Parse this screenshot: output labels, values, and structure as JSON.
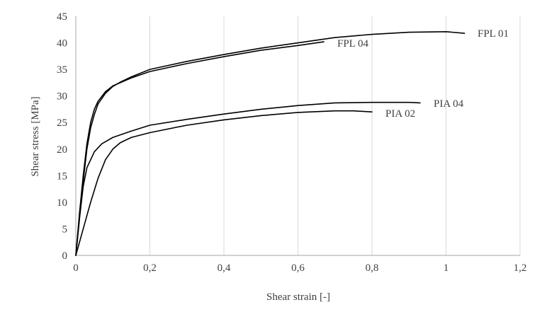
{
  "chart_data": {
    "type": "line",
    "title": "",
    "xlabel": "Shear strain [-]",
    "ylabel": "Shear stress [MPa]",
    "xlim": [
      0,
      1.2
    ],
    "ylim": [
      0,
      45
    ],
    "x_ticks": [
      "0",
      "0,2",
      "0,4",
      "0,6",
      "0,8",
      "1",
      "1,2"
    ],
    "y_ticks": [
      "0",
      "5",
      "10",
      "15",
      "20",
      "25",
      "30",
      "35",
      "40",
      "45"
    ],
    "grid": "vertical",
    "line_color": "#000000",
    "series": [
      {
        "name": "FPL 01",
        "x": [
          0,
          0.01,
          0.02,
          0.03,
          0.04,
          0.05,
          0.06,
          0.08,
          0.1,
          0.12,
          0.15,
          0.2,
          0.3,
          0.4,
          0.5,
          0.6,
          0.7,
          0.8,
          0.9,
          1.0,
          1.05
        ],
        "y": [
          0,
          7,
          14,
          20,
          24,
          26.5,
          28.5,
          30.5,
          31.8,
          32.6,
          33.6,
          35,
          36.5,
          37.8,
          39,
          40,
          41,
          41.6,
          42,
          42.1,
          41.8
        ]
      },
      {
        "name": "FPL 04",
        "x": [
          0,
          0.01,
          0.02,
          0.03,
          0.04,
          0.05,
          0.06,
          0.08,
          0.1,
          0.12,
          0.15,
          0.2,
          0.3,
          0.4,
          0.5,
          0.6,
          0.67
        ],
        "y": [
          0,
          8,
          15,
          21,
          25,
          27.5,
          29,
          30.8,
          31.9,
          32.5,
          33.4,
          34.6,
          36.1,
          37.4,
          38.6,
          39.5,
          40.2
        ]
      },
      {
        "name": "PIA 04",
        "x": [
          0,
          0.01,
          0.02,
          0.03,
          0.05,
          0.07,
          0.1,
          0.15,
          0.2,
          0.3,
          0.4,
          0.5,
          0.6,
          0.7,
          0.8,
          0.9,
          0.93
        ],
        "y": [
          0,
          7,
          13,
          16.5,
          19.5,
          21,
          22.2,
          23.4,
          24.5,
          25.6,
          26.6,
          27.5,
          28.2,
          28.7,
          28.8,
          28.8,
          28.7
        ]
      },
      {
        "name": "PIA 02",
        "x": [
          0,
          0.02,
          0.04,
          0.06,
          0.08,
          0.1,
          0.12,
          0.15,
          0.2,
          0.3,
          0.4,
          0.5,
          0.6,
          0.7,
          0.75,
          0.8
        ],
        "y": [
          0,
          5,
          10,
          14.5,
          18,
          20,
          21.2,
          22.2,
          23.1,
          24.5,
          25.5,
          26.3,
          26.9,
          27.2,
          27.2,
          27.0
        ]
      }
    ],
    "series_labels": [
      "FPL 01",
      "FPL 04",
      "PIA 04",
      "PIA 02"
    ]
  }
}
